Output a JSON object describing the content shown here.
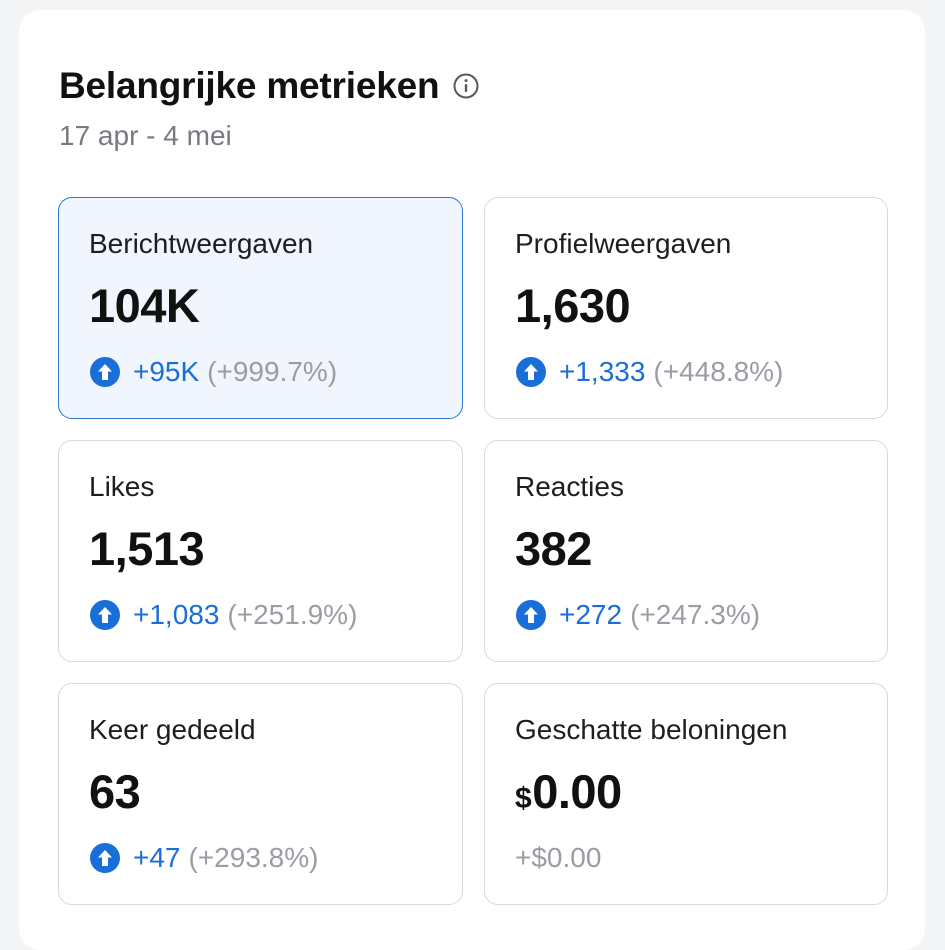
{
  "header": {
    "title": "Belangrijke metrieken",
    "date_range": "17 apr - 4 mei"
  },
  "colors": {
    "accent": "#1a6ed8",
    "selected_bg": "#f1f6fe",
    "selected_border": "#2a78d6",
    "muted": "#9a9da3"
  },
  "metrics": [
    {
      "label": "Berichtweergaven",
      "value": "104K",
      "delta": "+95K",
      "delta_pct": "(+999.7%)",
      "trend": "up",
      "selected": true
    },
    {
      "label": "Profielweergaven",
      "value": "1,630",
      "delta": "+1,333",
      "delta_pct": "(+448.8%)",
      "trend": "up",
      "selected": false
    },
    {
      "label": "Likes",
      "value": "1,513",
      "delta": "+1,083",
      "delta_pct": "(+251.9%)",
      "trend": "up",
      "selected": false
    },
    {
      "label": "Reacties",
      "value": "382",
      "delta": "+272",
      "delta_pct": "(+247.3%)",
      "trend": "up",
      "selected": false
    },
    {
      "label": "Keer gedeeld",
      "value": "63",
      "delta": "+47",
      "delta_pct": "(+293.8%)",
      "trend": "up",
      "selected": false
    },
    {
      "label": "Geschatte beloningen",
      "currency": "$",
      "value": "0.00",
      "delta": "+$0.00",
      "delta_pct": "",
      "trend": "neutral",
      "selected": false
    }
  ]
}
